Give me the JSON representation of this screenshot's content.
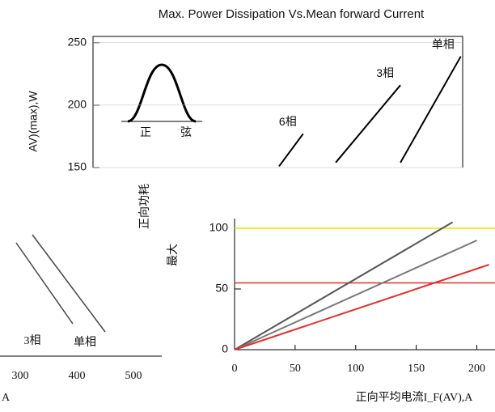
{
  "chart_data": [
    {
      "type": "line",
      "title": "Max. Power Dissipation Vs.Mean forward Current",
      "y_label": "AV)(max),W",
      "xlim": [
        0,
        600
      ],
      "ylim": [
        150,
        255
      ],
      "yticks": [
        150,
        200,
        250
      ],
      "series": [
        {
          "name": "6相",
          "color": "#000000",
          "x": [
            302,
            341
          ],
          "values": [
            151,
            177
          ]
        },
        {
          "name": "3相",
          "color": "#000000",
          "x": [
            394,
            499
          ],
          "values": [
            154,
            216
          ]
        },
        {
          "name": "单相",
          "color": "#000000",
          "x": [
            499,
            597
          ],
          "values": [
            154,
            239
          ]
        }
      ],
      "inset_labels": [
        "正",
        "弦"
      ]
    },
    {
      "type": "line",
      "x_label": "正向平均电流I_F(AV),A",
      "y_label": "正向功耗",
      "y_label_2": "最大",
      "xlim": [
        0,
        215
      ],
      "ylim": [
        0,
        108
      ],
      "xticks": [
        0,
        50,
        100,
        150,
        200
      ],
      "yticks": [
        0,
        50,
        100
      ],
      "hlines": [
        {
          "value": 100,
          "color": "#e6e600"
        },
        {
          "value": 55,
          "color": "#e03030"
        }
      ],
      "series": [
        {
          "color": "#555555",
          "x": [
            0,
            180
          ],
          "values": [
            0,
            105
          ]
        },
        {
          "color": "#777777",
          "x": [
            0,
            200
          ],
          "values": [
            0,
            90
          ]
        },
        {
          "color": "#e03030",
          "x": [
            0,
            210
          ],
          "values": [
            0,
            70
          ]
        }
      ]
    }
  ],
  "fragment": {
    "xticks": [
      300,
      400,
      500
    ],
    "labels": [
      "3相",
      "单相"
    ],
    "unit": "A"
  }
}
